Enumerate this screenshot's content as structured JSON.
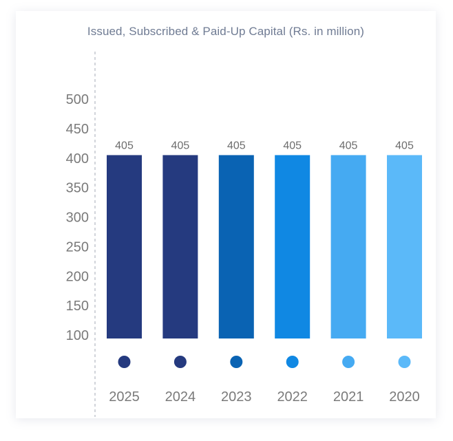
{
  "chart_data": {
    "type": "bar",
    "title": "Issued, Subscribed & Paid-Up Capital (Rs. in million)",
    "categories": [
      "2025",
      "2024",
      "2023",
      "2022",
      "2021",
      "2020"
    ],
    "values": [
      405,
      405,
      405,
      405,
      405,
      405
    ],
    "data_labels": [
      "405",
      "405",
      "405",
      "405",
      "405",
      "405"
    ],
    "bar_colors": [
      "#253a7f",
      "#253a7f",
      "#0a63b3",
      "#1088e3",
      "#45aaf2",
      "#5bb9f9"
    ],
    "ylim": [
      100,
      500
    ],
    "yticks": [
      100,
      150,
      200,
      250,
      300,
      350,
      400,
      450,
      500
    ],
    "ytick_labels": [
      "100",
      "150",
      "200",
      "250",
      "300",
      "350",
      "400",
      "450",
      "500"
    ],
    "xlabel": "",
    "ylabel": "",
    "grid": false,
    "legend": "none",
    "marker_under_bars": "dot"
  }
}
